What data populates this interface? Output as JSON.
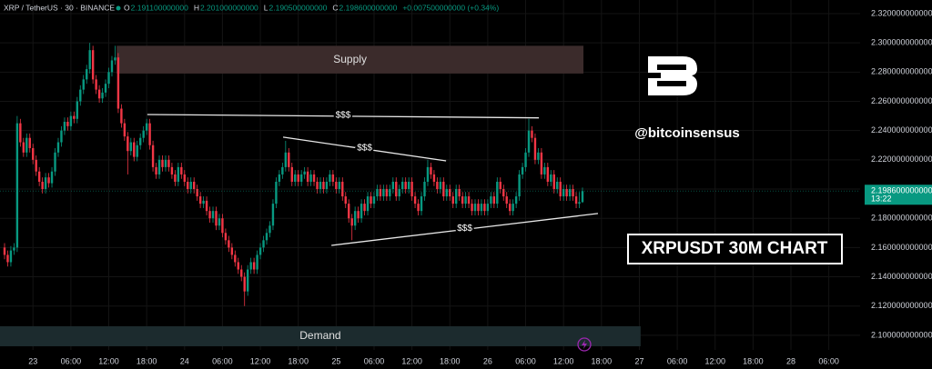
{
  "header": {
    "symbol": "XRP / TetherUS · 30 · BINANCE",
    "items": [
      {
        "k": "O",
        "v": "2.191100000000"
      },
      {
        "k": "H",
        "v": "2.201000000000"
      },
      {
        "k": "L",
        "v": "2.190500000000"
      },
      {
        "k": "C",
        "v": "2.198600000000"
      }
    ],
    "change": "+0.007500000000 (+0.34%)"
  },
  "watermark": {
    "handle": "@bitcoinsensus",
    "caption": "XRPUSDT 30M CHART"
  },
  "chart_data": {
    "type": "candlestick",
    "up_color": "#089981",
    "down_color": "#f23645",
    "xlim": [
      -1.44,
      270.9
    ],
    "ylim": [
      2.09,
      2.3293
    ],
    "xticks": [
      {
        "value": 9,
        "label": "23"
      },
      {
        "value": 21,
        "label": "06:00"
      },
      {
        "value": 33,
        "label": "12:00"
      },
      {
        "value": 45,
        "label": "18:00"
      },
      {
        "value": 57,
        "label": "24"
      },
      {
        "value": 69,
        "label": "06:00"
      },
      {
        "value": 81,
        "label": "12:00"
      },
      {
        "value": 93,
        "label": "18:00"
      },
      {
        "value": 105,
        "label": "25"
      },
      {
        "value": 117,
        "label": "06:00"
      },
      {
        "value": 129,
        "label": "12:00"
      },
      {
        "value": 141,
        "label": "18:00"
      },
      {
        "value": 153,
        "label": "26"
      },
      {
        "value": 165,
        "label": "06:00"
      },
      {
        "value": 177,
        "label": "12:00"
      },
      {
        "value": 189,
        "label": "18:00"
      },
      {
        "value": 201,
        "label": "27"
      },
      {
        "value": 213,
        "label": "06:00"
      },
      {
        "value": 225,
        "label": "12:00"
      },
      {
        "value": 237,
        "label": "18:00"
      },
      {
        "value": 249,
        "label": "28"
      },
      {
        "value": 261,
        "label": "06:00"
      }
    ],
    "yticks": [
      {
        "value": 2.32,
        "label": "2.320000000000"
      },
      {
        "value": 2.3,
        "label": "2.300000000000"
      },
      {
        "value": 2.28,
        "label": "2.280000000000"
      },
      {
        "value": 2.26,
        "label": "2.260000000000"
      },
      {
        "value": 2.24,
        "label": "2.240000000000"
      },
      {
        "value": 2.22,
        "label": "2.220000000000"
      },
      {
        "value": 2.2,
        "label": "2.200000000000"
      },
      {
        "value": 2.18,
        "label": "2.180000000000"
      },
      {
        "value": 2.16,
        "label": "2.160000000000"
      },
      {
        "value": 2.14,
        "label": "2.140000000000"
      },
      {
        "value": 2.12,
        "label": "2.120000000000"
      },
      {
        "value": 2.1,
        "label": "2.100000000000"
      }
    ],
    "grid": true,
    "last_price": {
      "label": "2.198600000000",
      "countdown": "13:22"
    },
    "zones": [
      {
        "text": "Supply",
        "x": [
          35.5,
          183.3
        ],
        "y": [
          2.279,
          2.298
        ],
        "color": "#3b2b2b"
      },
      {
        "text": "Demand",
        "x": [
          -1.44,
          201.4
        ],
        "y": [
          2.0925,
          2.1062
        ],
        "color": "#1c2b2e"
      }
    ],
    "trendlines": [
      {
        "text": "$$$",
        "x": [
          45.2,
          169.2
        ],
        "y": [
          2.251,
          2.2487
        ]
      },
      {
        "text": "$$$",
        "x": [
          88.2,
          139.8
        ],
        "y": [
          2.2355,
          2.2193
        ]
      },
      {
        "text": "$$$",
        "x": [
          103.5,
          187.9
        ],
        "y": [
          2.1615,
          2.1833
        ]
      }
    ],
    "ohlc": [
      [
        2.16,
        2.163,
        2.152,
        2.155
      ],
      [
        2.155,
        2.158,
        2.147,
        2.15
      ],
      [
        2.15,
        2.161,
        2.147,
        2.158
      ],
      [
        2.158,
        2.163,
        2.155,
        2.16
      ],
      [
        2.16,
        2.25,
        2.157,
        2.245
      ],
      [
        2.245,
        2.248,
        2.229,
        2.232
      ],
      [
        2.232,
        2.235,
        2.222,
        2.225
      ],
      [
        2.225,
        2.238,
        2.222,
        2.235
      ],
      [
        2.235,
        2.238,
        2.225,
        2.228
      ],
      [
        2.228,
        2.231,
        2.217,
        2.22
      ],
      [
        2.22,
        2.223,
        2.209,
        2.212
      ],
      [
        2.212,
        2.215,
        2.202,
        2.205
      ],
      [
        2.205,
        2.208,
        2.197,
        2.2
      ],
      [
        2.2,
        2.211,
        2.197,
        2.208
      ],
      [
        2.208,
        2.211,
        2.201,
        2.204
      ],
      [
        2.204,
        2.215,
        2.201,
        2.212
      ],
      [
        2.212,
        2.228,
        2.209,
        2.225
      ],
      [
        2.225,
        2.235,
        2.222,
        2.232
      ],
      [
        2.232,
        2.243,
        2.229,
        2.24
      ],
      [
        2.24,
        2.249,
        2.237,
        2.246
      ],
      [
        2.246,
        2.249,
        2.24,
        2.243
      ],
      [
        2.243,
        2.253,
        2.24,
        2.25
      ],
      [
        2.25,
        2.253,
        2.245,
        2.248
      ],
      [
        2.248,
        2.263,
        2.245,
        2.26
      ],
      [
        2.26,
        2.271,
        2.257,
        2.268
      ],
      [
        2.268,
        2.278,
        2.265,
        2.275
      ],
      [
        2.275,
        2.285,
        2.272,
        2.282
      ],
      [
        2.282,
        2.3,
        2.279,
        2.295
      ],
      [
        2.295,
        2.298,
        2.272,
        2.275
      ],
      [
        2.275,
        2.278,
        2.265,
        2.268
      ],
      [
        2.268,
        2.271,
        2.259,
        2.262
      ],
      [
        2.262,
        2.269,
        2.259,
        2.266
      ],
      [
        2.266,
        2.275,
        2.263,
        2.272
      ],
      [
        2.272,
        2.283,
        2.269,
        2.28
      ],
      [
        2.28,
        2.291,
        2.277,
        2.288
      ],
      [
        2.288,
        2.298,
        2.285,
        2.29
      ],
      [
        2.29,
        2.293,
        2.252,
        2.255
      ],
      [
        2.255,
        2.258,
        2.242,
        2.245
      ],
      [
        2.245,
        2.248,
        2.233,
        2.236
      ],
      [
        2.236,
        2.239,
        2.21,
        2.226
      ],
      [
        2.226,
        2.235,
        2.223,
        2.232
      ],
      [
        2.232,
        2.235,
        2.219,
        2.222
      ],
      [
        2.222,
        2.233,
        2.219,
        2.23
      ],
      [
        2.23,
        2.238,
        2.227,
        2.235
      ],
      [
        2.235,
        2.243,
        2.232,
        2.24
      ],
      [
        2.24,
        2.248,
        2.237,
        2.245
      ],
      [
        2.245,
        2.248,
        2.227,
        2.23
      ],
      [
        2.23,
        2.233,
        2.212,
        2.215
      ],
      [
        2.215,
        2.218,
        2.207,
        2.21
      ],
      [
        2.21,
        2.223,
        2.207,
        2.22
      ],
      [
        2.22,
        2.223,
        2.212,
        2.215
      ],
      [
        2.215,
        2.223,
        2.212,
        2.22
      ],
      [
        2.22,
        2.223,
        2.212,
        2.215
      ],
      [
        2.215,
        2.218,
        2.207,
        2.21
      ],
      [
        2.21,
        2.213,
        2.202,
        2.205
      ],
      [
        2.205,
        2.218,
        2.202,
        2.215
      ],
      [
        2.215,
        2.218,
        2.207,
        2.21
      ],
      [
        2.21,
        2.213,
        2.202,
        2.205
      ],
      [
        2.205,
        2.208,
        2.197,
        2.2
      ],
      [
        2.2,
        2.208,
        2.197,
        2.205
      ],
      [
        2.205,
        2.208,
        2.197,
        2.2
      ],
      [
        2.2,
        2.203,
        2.192,
        2.195
      ],
      [
        2.195,
        2.198,
        2.187,
        2.19
      ],
      [
        2.19,
        2.195,
        2.187,
        2.192
      ],
      [
        2.192,
        2.195,
        2.182,
        2.185
      ],
      [
        2.185,
        2.188,
        2.177,
        2.18
      ],
      [
        2.18,
        2.188,
        2.177,
        2.185
      ],
      [
        2.185,
        2.188,
        2.172,
        2.175
      ],
      [
        2.175,
        2.183,
        2.172,
        2.18
      ],
      [
        2.18,
        2.183,
        2.167,
        2.17
      ],
      [
        2.17,
        2.173,
        2.162,
        2.165
      ],
      [
        2.165,
        2.168,
        2.157,
        2.16
      ],
      [
        2.16,
        2.163,
        2.152,
        2.155
      ],
      [
        2.155,
        2.158,
        2.147,
        2.15
      ],
      [
        2.15,
        2.153,
        2.142,
        2.145
      ],
      [
        2.145,
        2.148,
        2.137,
        2.14
      ],
      [
        2.14,
        2.143,
        2.12,
        2.13
      ],
      [
        2.13,
        2.148,
        2.127,
        2.145
      ],
      [
        2.145,
        2.153,
        2.142,
        2.15
      ],
      [
        2.15,
        2.153,
        2.142,
        2.145
      ],
      [
        2.145,
        2.158,
        2.142,
        2.155
      ],
      [
        2.155,
        2.163,
        2.152,
        2.16
      ],
      [
        2.16,
        2.168,
        2.157,
        2.165
      ],
      [
        2.165,
        2.173,
        2.162,
        2.17
      ],
      [
        2.17,
        2.178,
        2.167,
        2.175
      ],
      [
        2.175,
        2.193,
        2.172,
        2.19
      ],
      [
        2.19,
        2.208,
        2.187,
        2.205
      ],
      [
        2.205,
        2.213,
        2.202,
        2.21
      ],
      [
        2.21,
        2.218,
        2.207,
        2.215
      ],
      [
        2.215,
        2.233,
        2.212,
        2.225
      ],
      [
        2.225,
        2.228,
        2.212,
        2.215
      ],
      [
        2.215,
        2.218,
        2.202,
        2.205
      ],
      [
        2.205,
        2.213,
        2.202,
        2.21
      ],
      [
        2.21,
        2.213,
        2.202,
        2.205
      ],
      [
        2.205,
        2.213,
        2.202,
        2.21
      ],
      [
        2.21,
        2.215,
        2.207,
        2.212
      ],
      [
        2.212,
        2.215,
        2.202,
        2.205
      ],
      [
        2.205,
        2.213,
        2.202,
        2.21
      ],
      [
        2.21,
        2.213,
        2.202,
        2.205
      ],
      [
        2.205,
        2.208,
        2.197,
        2.2
      ],
      [
        2.2,
        2.208,
        2.197,
        2.205
      ],
      [
        2.205,
        2.208,
        2.197,
        2.2
      ],
      [
        2.2,
        2.208,
        2.197,
        2.205
      ],
      [
        2.205,
        2.213,
        2.202,
        2.21
      ],
      [
        2.21,
        2.213,
        2.202,
        2.205
      ],
      [
        2.205,
        2.208,
        2.197,
        2.2
      ],
      [
        2.2,
        2.208,
        2.197,
        2.205
      ],
      [
        2.205,
        2.208,
        2.192,
        2.195
      ],
      [
        2.195,
        2.198,
        2.187,
        2.19
      ],
      [
        2.19,
        2.193,
        2.177,
        2.18
      ],
      [
        2.18,
        2.183,
        2.165,
        2.175
      ],
      [
        2.175,
        2.188,
        2.172,
        2.185
      ],
      [
        2.185,
        2.188,
        2.177,
        2.18
      ],
      [
        2.18,
        2.193,
        2.177,
        2.19
      ],
      [
        2.19,
        2.193,
        2.182,
        2.185
      ],
      [
        2.185,
        2.198,
        2.182,
        2.195
      ],
      [
        2.195,
        2.198,
        2.187,
        2.19
      ],
      [
        2.19,
        2.198,
        2.187,
        2.195
      ],
      [
        2.195,
        2.203,
        2.192,
        2.2
      ],
      [
        2.2,
        2.203,
        2.192,
        2.195
      ],
      [
        2.195,
        2.203,
        2.192,
        2.2
      ],
      [
        2.2,
        2.203,
        2.192,
        2.195
      ],
      [
        2.195,
        2.203,
        2.192,
        2.2
      ],
      [
        2.2,
        2.208,
        2.197,
        2.205
      ],
      [
        2.205,
        2.208,
        2.192,
        2.195
      ],
      [
        2.195,
        2.203,
        2.192,
        2.2
      ],
      [
        2.2,
        2.208,
        2.197,
        2.205
      ],
      [
        2.205,
        2.208,
        2.197,
        2.2
      ],
      [
        2.2,
        2.208,
        2.197,
        2.205
      ],
      [
        2.205,
        2.208,
        2.192,
        2.195
      ],
      [
        2.195,
        2.198,
        2.187,
        2.19
      ],
      [
        2.19,
        2.193,
        2.182,
        2.185
      ],
      [
        2.185,
        2.198,
        2.182,
        2.195
      ],
      [
        2.195,
        2.208,
        2.192,
        2.205
      ],
      [
        2.205,
        2.22,
        2.202,
        2.215
      ],
      [
        2.215,
        2.218,
        2.207,
        2.21
      ],
      [
        2.21,
        2.213,
        2.202,
        2.205
      ],
      [
        2.205,
        2.208,
        2.197,
        2.2
      ],
      [
        2.2,
        2.208,
        2.197,
        2.205
      ],
      [
        2.205,
        2.208,
        2.192,
        2.195
      ],
      [
        2.195,
        2.203,
        2.192,
        2.2
      ],
      [
        2.2,
        2.203,
        2.192,
        2.195
      ],
      [
        2.195,
        2.198,
        2.187,
        2.19
      ],
      [
        2.19,
        2.203,
        2.187,
        2.2
      ],
      [
        2.2,
        2.203,
        2.192,
        2.195
      ],
      [
        2.195,
        2.198,
        2.187,
        2.19
      ],
      [
        2.19,
        2.198,
        2.187,
        2.195
      ],
      [
        2.195,
        2.198,
        2.187,
        2.19
      ],
      [
        2.19,
        2.193,
        2.182,
        2.185
      ],
      [
        2.185,
        2.193,
        2.182,
        2.19
      ],
      [
        2.19,
        2.193,
        2.182,
        2.185
      ],
      [
        2.185,
        2.193,
        2.182,
        2.19
      ],
      [
        2.19,
        2.193,
        2.182,
        2.185
      ],
      [
        2.185,
        2.193,
        2.182,
        2.19
      ],
      [
        2.19,
        2.198,
        2.187,
        2.195
      ],
      [
        2.195,
        2.198,
        2.187,
        2.19
      ],
      [
        2.19,
        2.208,
        2.187,
        2.205
      ],
      [
        2.205,
        2.208,
        2.197,
        2.2
      ],
      [
        2.2,
        2.203,
        2.192,
        2.195
      ],
      [
        2.195,
        2.198,
        2.187,
        2.19
      ],
      [
        2.19,
        2.193,
        2.182,
        2.185
      ],
      [
        2.185,
        2.193,
        2.182,
        2.19
      ],
      [
        2.19,
        2.198,
        2.187,
        2.195
      ],
      [
        2.195,
        2.213,
        2.192,
        2.21
      ],
      [
        2.21,
        2.218,
        2.207,
        2.215
      ],
      [
        2.215,
        2.228,
        2.212,
        2.225
      ],
      [
        2.225,
        2.248,
        2.222,
        2.24
      ],
      [
        2.24,
        2.243,
        2.232,
        2.235
      ],
      [
        2.235,
        2.238,
        2.217,
        2.22
      ],
      [
        2.22,
        2.228,
        2.217,
        2.225
      ],
      [
        2.225,
        2.228,
        2.207,
        2.21
      ],
      [
        2.21,
        2.218,
        2.207,
        2.215
      ],
      [
        2.215,
        2.218,
        2.202,
        2.205
      ],
      [
        2.205,
        2.213,
        2.202,
        2.21
      ],
      [
        2.21,
        2.213,
        2.197,
        2.2
      ],
      [
        2.2,
        2.208,
        2.197,
        2.205
      ],
      [
        2.205,
        2.208,
        2.192,
        2.195
      ],
      [
        2.195,
        2.203,
        2.192,
        2.2
      ],
      [
        2.2,
        2.203,
        2.192,
        2.195
      ],
      [
        2.195,
        2.203,
        2.192,
        2.2
      ],
      [
        2.2,
        2.203,
        2.192,
        2.195
      ],
      [
        2.195,
        2.198,
        2.187,
        2.19
      ],
      [
        2.19,
        2.198,
        2.187,
        2.1911
      ],
      [
        2.1911,
        2.201,
        2.1905,
        2.1986
      ]
    ]
  }
}
